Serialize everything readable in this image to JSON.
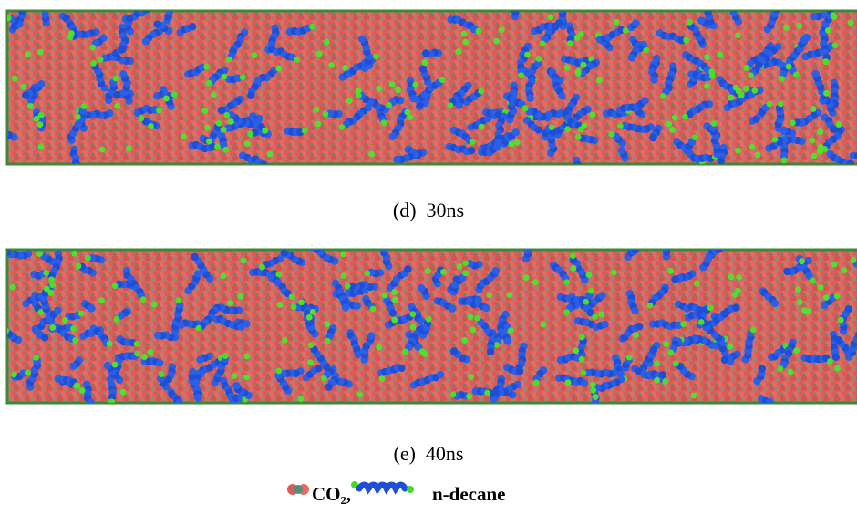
{
  "panels": [
    {
      "caption": "(d)  30ns"
    },
    {
      "caption": "(e)  40ns"
    }
  ],
  "legend": {
    "items": [
      {
        "label": "CO₂,"
      },
      {
        "label": "n-decane"
      }
    ]
  }
}
